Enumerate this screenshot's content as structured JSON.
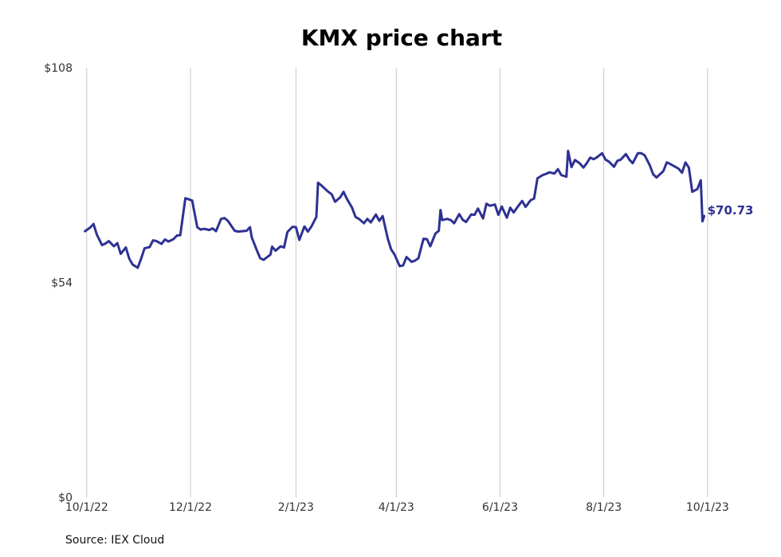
{
  "chart_data": {
    "type": "line",
    "title": "KMX price chart",
    "xlabel": "",
    "ylabel": "",
    "x_tick_labels": [
      "10/1/22",
      "12/1/22",
      "2/1/23",
      "4/1/23",
      "6/1/23",
      "8/1/23",
      "10/1/23"
    ],
    "y_tick_labels": [
      "$0",
      "$54",
      "$108"
    ],
    "ylim": [
      0,
      108
    ],
    "xlim": [
      "2022-09-25",
      "2023-10-02"
    ],
    "grid": "vertical",
    "legend": "none",
    "line_color": "#2e3192",
    "last_value_label": "$70.73",
    "series": [
      {
        "points": [
          [
            "2022-09-30",
            66.9
          ],
          [
            "2022-10-03",
            67.8
          ],
          [
            "2022-10-05",
            68.7
          ],
          [
            "2022-10-07",
            66.0
          ],
          [
            "2022-10-10",
            63.4
          ],
          [
            "2022-10-12",
            63.8
          ],
          [
            "2022-10-14",
            64.4
          ],
          [
            "2022-10-17",
            63.1
          ],
          [
            "2022-10-19",
            63.9
          ],
          [
            "2022-10-21",
            61.2
          ],
          [
            "2022-10-24",
            62.8
          ],
          [
            "2022-10-26",
            60.0
          ],
          [
            "2022-10-28",
            58.5
          ],
          [
            "2022-10-31",
            57.7
          ],
          [
            "2022-11-02",
            60.0
          ],
          [
            "2022-11-04",
            62.6
          ],
          [
            "2022-11-07",
            62.9
          ],
          [
            "2022-11-09",
            64.6
          ],
          [
            "2022-11-11",
            64.4
          ],
          [
            "2022-11-14",
            63.7
          ],
          [
            "2022-11-16",
            64.8
          ],
          [
            "2022-11-18",
            64.3
          ],
          [
            "2022-11-21",
            64.9
          ],
          [
            "2022-11-23",
            65.8
          ],
          [
            "2022-11-25",
            65.9
          ],
          [
            "2022-11-28",
            75.2
          ],
          [
            "2022-11-30",
            74.9
          ],
          [
            "2022-12-02",
            74.6
          ],
          [
            "2022-12-05",
            67.9
          ],
          [
            "2022-12-07",
            67.3
          ],
          [
            "2022-12-09",
            67.5
          ],
          [
            "2022-12-12",
            67.2
          ],
          [
            "2022-12-14",
            67.6
          ],
          [
            "2022-12-16",
            66.9
          ],
          [
            "2022-12-19",
            70.0
          ],
          [
            "2022-12-21",
            70.2
          ],
          [
            "2022-12-23",
            69.5
          ],
          [
            "2022-12-27",
            67.0
          ],
          [
            "2022-12-29",
            66.8
          ],
          [
            "2023-01-03",
            67.0
          ],
          [
            "2023-01-05",
            67.9
          ],
          [
            "2023-01-06",
            65.4
          ],
          [
            "2023-01-09",
            62.1
          ],
          [
            "2023-01-11",
            60.1
          ],
          [
            "2023-01-13",
            59.7
          ],
          [
            "2023-01-17",
            61.0
          ],
          [
            "2023-01-18",
            63.0
          ],
          [
            "2023-01-20",
            62.0
          ],
          [
            "2023-01-23",
            63.1
          ],
          [
            "2023-01-25",
            62.8
          ],
          [
            "2023-01-27",
            66.7
          ],
          [
            "2023-01-30",
            68.0
          ],
          [
            "2023-02-01",
            67.9
          ],
          [
            "2023-02-03",
            64.7
          ],
          [
            "2023-02-06",
            68.1
          ],
          [
            "2023-02-08",
            66.8
          ],
          [
            "2023-02-10",
            68.0
          ],
          [
            "2023-02-13",
            70.5
          ],
          [
            "2023-02-14",
            79.1
          ],
          [
            "2023-02-16",
            78.4
          ],
          [
            "2023-02-17",
            78.0
          ],
          [
            "2023-02-20",
            76.8
          ],
          [
            "2023-02-22",
            76.2
          ],
          [
            "2023-02-24",
            74.3
          ],
          [
            "2023-02-27",
            75.4
          ],
          [
            "2023-03-01",
            76.8
          ],
          [
            "2023-03-03",
            75.0
          ],
          [
            "2023-03-06",
            72.8
          ],
          [
            "2023-03-08",
            70.5
          ],
          [
            "2023-03-10",
            70.0
          ],
          [
            "2023-03-13",
            68.9
          ],
          [
            "2023-03-15",
            70.0
          ],
          [
            "2023-03-17",
            69.1
          ],
          [
            "2023-03-20",
            71.1
          ],
          [
            "2023-03-22",
            69.5
          ],
          [
            "2023-03-24",
            70.7
          ],
          [
            "2023-03-27",
            65.0
          ],
          [
            "2023-03-29",
            62.3
          ],
          [
            "2023-03-31",
            61.0
          ],
          [
            "2023-04-03",
            58.1
          ],
          [
            "2023-04-05",
            58.3
          ],
          [
            "2023-04-07",
            60.4
          ],
          [
            "2023-04-10",
            59.2
          ],
          [
            "2023-04-12",
            59.5
          ],
          [
            "2023-04-14",
            60.1
          ],
          [
            "2023-04-17",
            65.0
          ],
          [
            "2023-04-19",
            64.9
          ],
          [
            "2023-04-21",
            63.1
          ],
          [
            "2023-04-24",
            66.3
          ],
          [
            "2023-04-26",
            67.0
          ],
          [
            "2023-04-27",
            72.2
          ],
          [
            "2023-04-28",
            69.7
          ],
          [
            "2023-05-01",
            70.0
          ],
          [
            "2023-05-03",
            69.7
          ],
          [
            "2023-05-05",
            68.9
          ],
          [
            "2023-05-08",
            71.2
          ],
          [
            "2023-05-10",
            69.8
          ],
          [
            "2023-05-12",
            69.2
          ],
          [
            "2023-05-15",
            71.1
          ],
          [
            "2023-05-17",
            71.0
          ],
          [
            "2023-05-19",
            72.6
          ],
          [
            "2023-05-22",
            70.1
          ],
          [
            "2023-05-24",
            73.8
          ],
          [
            "2023-05-26",
            73.3
          ],
          [
            "2023-05-29",
            73.6
          ],
          [
            "2023-05-31",
            71.0
          ],
          [
            "2023-06-02",
            73.1
          ],
          [
            "2023-06-05",
            70.3
          ],
          [
            "2023-06-07",
            72.8
          ],
          [
            "2023-06-09",
            71.6
          ],
          [
            "2023-06-12",
            73.4
          ],
          [
            "2023-06-14",
            74.5
          ],
          [
            "2023-06-16",
            73.0
          ],
          [
            "2023-06-19",
            74.7
          ],
          [
            "2023-06-21",
            75.1
          ],
          [
            "2023-06-23",
            80.2
          ],
          [
            "2023-06-26",
            81.0
          ],
          [
            "2023-06-28",
            81.3
          ],
          [
            "2023-06-30",
            81.7
          ],
          [
            "2023-07-03",
            81.4
          ],
          [
            "2023-07-05",
            82.5
          ],
          [
            "2023-07-07",
            81.0
          ],
          [
            "2023-07-10",
            80.6
          ],
          [
            "2023-07-11",
            87.1
          ],
          [
            "2023-07-13",
            83.0
          ],
          [
            "2023-07-15",
            84.8
          ],
          [
            "2023-07-18",
            83.9
          ],
          [
            "2023-07-20",
            82.9
          ],
          [
            "2023-07-22",
            84.0
          ],
          [
            "2023-07-24",
            85.4
          ],
          [
            "2023-07-26",
            85.0
          ],
          [
            "2023-07-28",
            85.5
          ],
          [
            "2023-07-31",
            86.5
          ],
          [
            "2023-08-02",
            84.9
          ],
          [
            "2023-08-04",
            84.4
          ],
          [
            "2023-08-07",
            83.1
          ],
          [
            "2023-08-09",
            84.6
          ],
          [
            "2023-08-11",
            84.9
          ],
          [
            "2023-08-14",
            86.3
          ],
          [
            "2023-08-16",
            84.9
          ],
          [
            "2023-08-18",
            84.0
          ],
          [
            "2023-08-21",
            86.5
          ],
          [
            "2023-08-23",
            86.5
          ],
          [
            "2023-08-25",
            86.0
          ],
          [
            "2023-08-28",
            83.5
          ],
          [
            "2023-08-30",
            81.2
          ],
          [
            "2023-09-01",
            80.4
          ],
          [
            "2023-09-05",
            82.0
          ],
          [
            "2023-09-07",
            84.2
          ],
          [
            "2023-09-09",
            83.8
          ],
          [
            "2023-09-12",
            83.1
          ],
          [
            "2023-09-14",
            82.6
          ],
          [
            "2023-09-16",
            81.6
          ],
          [
            "2023-09-18",
            84.2
          ],
          [
            "2023-09-20",
            82.9
          ],
          [
            "2023-09-22",
            76.8
          ],
          [
            "2023-09-25",
            77.5
          ],
          [
            "2023-09-27",
            79.7
          ],
          [
            "2023-09-28",
            69.4
          ],
          [
            "2023-09-29",
            70.73
          ]
        ]
      }
    ],
    "source_note": "Source: IEX Cloud"
  }
}
